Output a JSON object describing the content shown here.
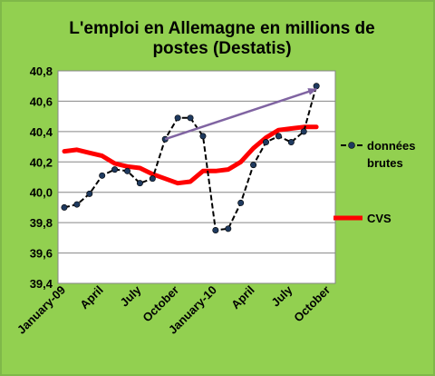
{
  "chart_data": {
    "type": "line",
    "title_lines": [
      "L'emploi en Allemagne en millions de",
      "postes  (Destatis)"
    ],
    "x_labels": [
      "January-09",
      "April",
      "July",
      "October",
      "January-10",
      "April",
      "July",
      "October"
    ],
    "x_months": [
      "2009-01",
      "2009-02",
      "2009-03",
      "2009-04",
      "2009-05",
      "2009-06",
      "2009-07",
      "2009-08",
      "2009-09",
      "2009-10",
      "2009-11",
      "2009-12",
      "2010-01",
      "2010-02",
      "2010-03",
      "2010-04",
      "2010-05",
      "2010-06",
      "2010-07",
      "2010-08",
      "2010-09",
      "2010-10"
    ],
    "ylim": [
      39.4,
      40.8
    ],
    "y_ticks": [
      "39,4",
      "39,6",
      "39,8",
      "40,0",
      "40,2",
      "40,4",
      "40,6",
      "40,8"
    ],
    "grid": "horizontal",
    "legend_position": "right",
    "series": [
      {
        "name": "données brutes",
        "line_color": "#000000",
        "marker_color": "#1f3a5f",
        "values": [
          39.9,
          39.92,
          39.99,
          40.11,
          40.15,
          40.14,
          40.06,
          40.09,
          40.35,
          40.49,
          40.49,
          40.37,
          39.75,
          39.76,
          39.93,
          40.18,
          40.33,
          40.37,
          40.33,
          40.4,
          40.7
        ]
      },
      {
        "name": "CVS",
        "line_color": "#ff0000",
        "values": [
          40.27,
          40.28,
          40.26,
          40.24,
          40.19,
          40.17,
          40.16,
          40.12,
          40.09,
          40.06,
          40.07,
          40.14,
          40.14,
          40.15,
          40.2,
          40.29,
          40.36,
          40.41,
          40.42,
          40.43,
          40.43
        ]
      }
    ],
    "annotations": [
      {
        "type": "arrow",
        "color": "#8064a2",
        "from": {
          "x": "2009-09",
          "y": 40.35
        },
        "to": {
          "x": "2010-09",
          "y": 40.68
        }
      }
    ]
  },
  "legend": {
    "brutes_line1": "données",
    "brutes_line2": "brutes",
    "cvs": "CVS"
  }
}
